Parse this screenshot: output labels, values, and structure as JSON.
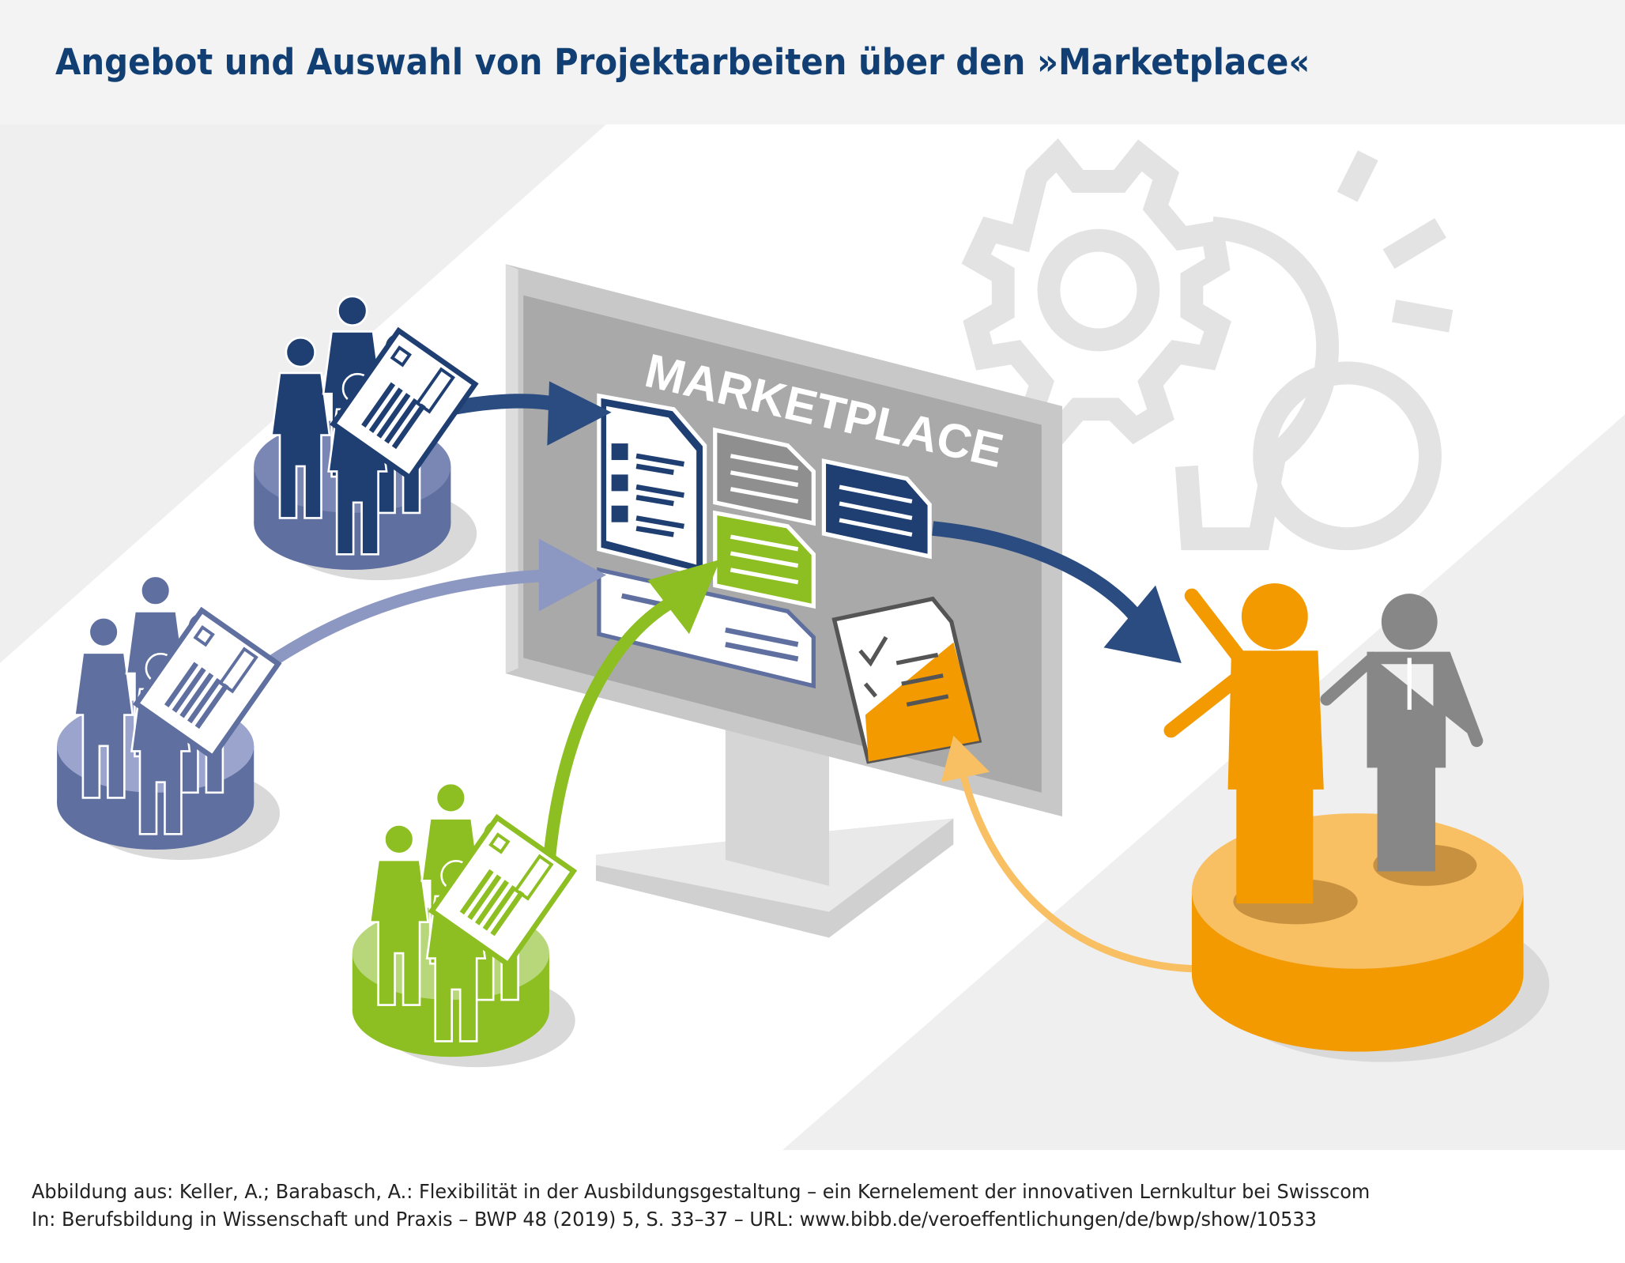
{
  "title": "Angebot und Auswahl von Projektarbeiten über den »Marketplace«",
  "screen_label": "MARKETPLACE",
  "footer": {
    "line1": "Abbildung aus: Keller, A.; Barabasch, A.: Flexibilität in der Ausbildungsgestaltung – ein Kernelement der innovativen Lernkultur bei Swisscom",
    "line2": "In: Berufsbildung in Wissenschaft und Praxis – BWP 48 (2019) 5, S. 33–37 – URL: www.bibb.de/veroeffentlichungen/de/bwp/show/10533"
  },
  "colors": {
    "dark_blue": "#1f3f73",
    "mid_blue": "#5f6f9f",
    "light_blue": "#8c98c2",
    "green": "#8dbe22",
    "orange": "#f29a00",
    "gray": "#878787"
  }
}
